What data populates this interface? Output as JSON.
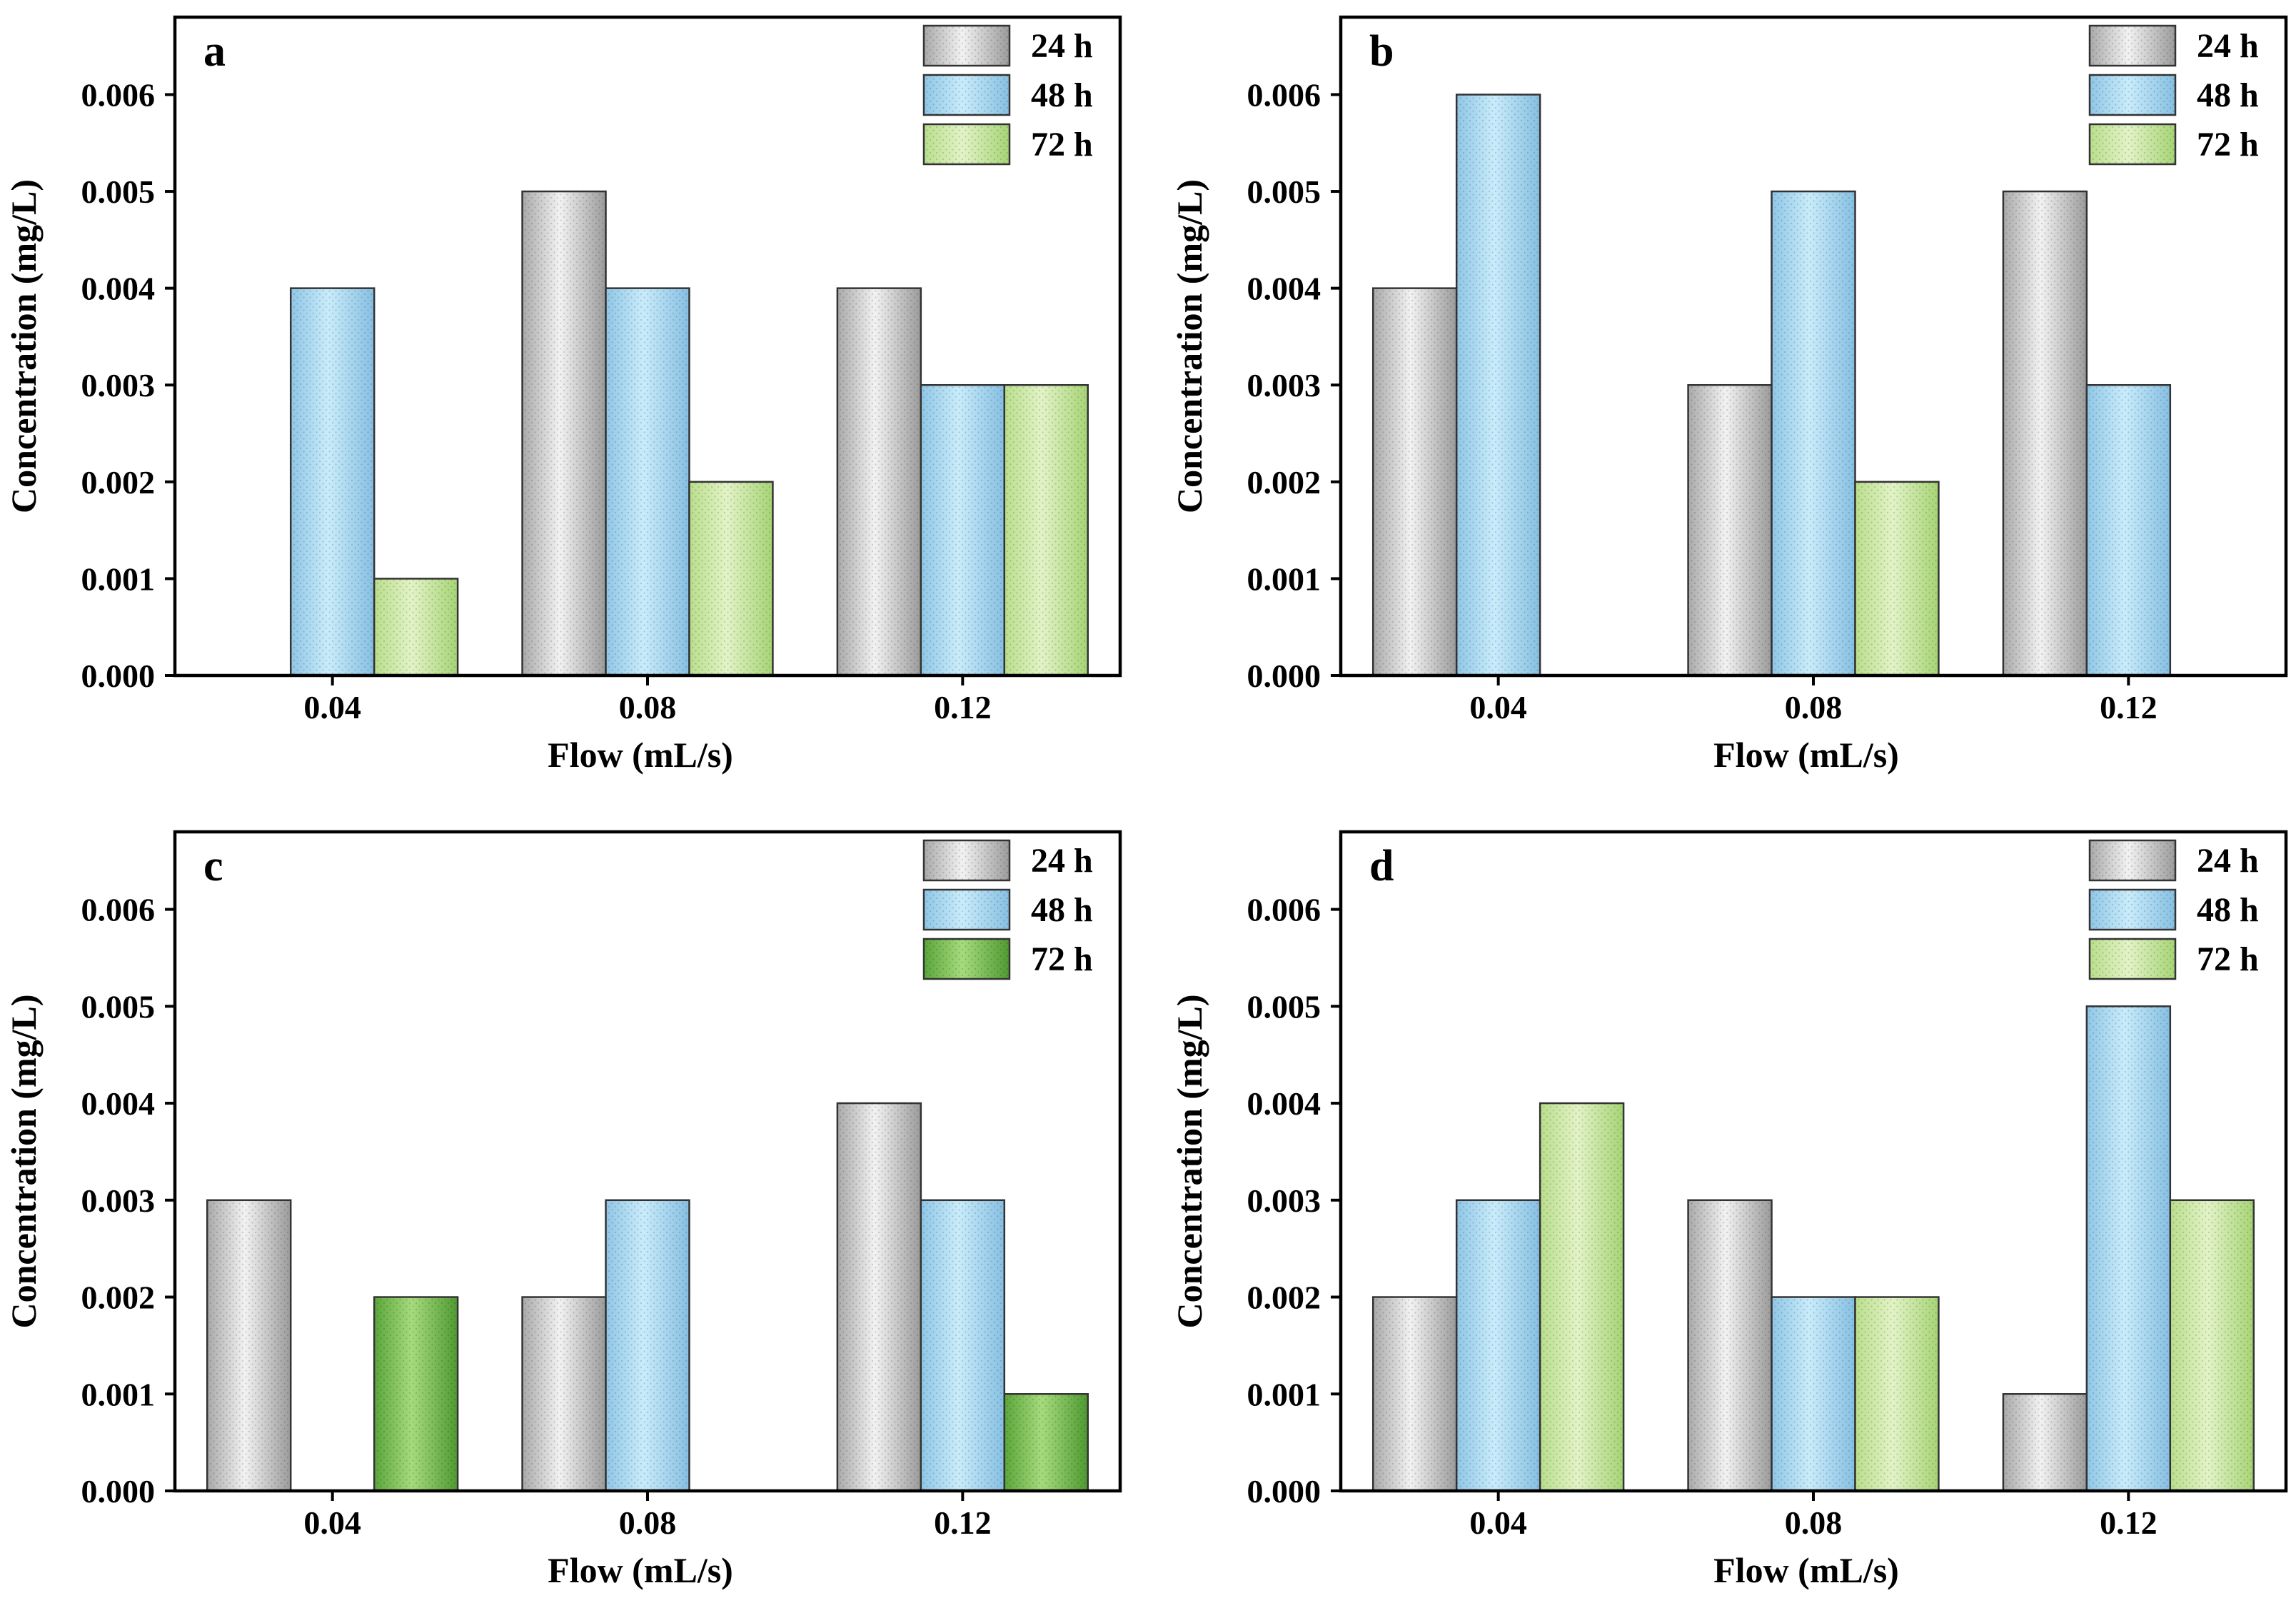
{
  "chart_data": [
    {
      "type": "bar",
      "panel": "a",
      "categories": [
        "0.04",
        "0.08",
        "0.12"
      ],
      "series": [
        {
          "name": "24 h",
          "values": [
            0,
            0.005,
            0.004
          ]
        },
        {
          "name": "48 h",
          "values": [
            0.004,
            0.004,
            0.003
          ]
        },
        {
          "name": "72 h",
          "values": [
            0.001,
            0.002,
            0.003
          ]
        }
      ],
      "xlabel": "Flow (mL/s)",
      "ylabel": "Concentration (mg/L)",
      "ylim": [
        0,
        0.0068
      ],
      "yticks": [
        "0.000",
        "0.001",
        "0.002",
        "0.003",
        "0.004",
        "0.005",
        "0.006"
      ],
      "legend": "top-right",
      "grid": false
    },
    {
      "type": "bar",
      "panel": "b",
      "categories": [
        "0.04",
        "0.08",
        "0.12"
      ],
      "series": [
        {
          "name": "24 h",
          "values": [
            0.004,
            0.003,
            0.005
          ]
        },
        {
          "name": "48 h",
          "values": [
            0.006,
            0.005,
            0.003
          ]
        },
        {
          "name": "72 h",
          "values": [
            0,
            0.002,
            0
          ]
        }
      ],
      "xlabel": "Flow (mL/s)",
      "ylabel": "Concentration (mg/L)",
      "ylim": [
        0,
        0.0068
      ],
      "yticks": [
        "0.000",
        "0.001",
        "0.002",
        "0.003",
        "0.004",
        "0.005",
        "0.006"
      ],
      "legend": "top-right",
      "grid": false
    },
    {
      "type": "bar",
      "panel": "c",
      "categories": [
        "0.04",
        "0.08",
        "0.12"
      ],
      "series": [
        {
          "name": "24 h",
          "values": [
            0.003,
            0.002,
            0.004
          ]
        },
        {
          "name": "48 h",
          "values": [
            0,
            0.003,
            0.003
          ]
        },
        {
          "name": "72 h",
          "values": [
            0.002,
            0,
            0.001
          ]
        }
      ],
      "xlabel": "Flow (mL/s)",
      "ylabel": "Concentration (mg/L)",
      "ylim": [
        0,
        0.0068
      ],
      "yticks": [
        "0.000",
        "0.001",
        "0.002",
        "0.003",
        "0.004",
        "0.005",
        "0.006"
      ],
      "legend": "top-right",
      "grid": false
    },
    {
      "type": "bar",
      "panel": "d",
      "categories": [
        "0.04",
        "0.08",
        "0.12"
      ],
      "series": [
        {
          "name": "24 h",
          "values": [
            0.002,
            0.003,
            0.001
          ]
        },
        {
          "name": "48 h",
          "values": [
            0.003,
            0.002,
            0.005
          ]
        },
        {
          "name": "72 h",
          "values": [
            0.004,
            0.002,
            0.003
          ]
        }
      ],
      "xlabel": "Flow (mL/s)",
      "ylabel": "Concentration (mg/L)",
      "ylim": [
        0,
        0.0068
      ],
      "yticks": [
        "0.000",
        "0.001",
        "0.002",
        "0.003",
        "0.004",
        "0.005",
        "0.006"
      ],
      "legend": "top-right",
      "grid": false
    }
  ],
  "colors": {
    "series_24h": "#d6d6d6",
    "series_48h": "#b3dcf4",
    "series_72h_light": "#cfe8a8",
    "series_72h_dark": "#7fc35a",
    "axis": "#000000"
  }
}
